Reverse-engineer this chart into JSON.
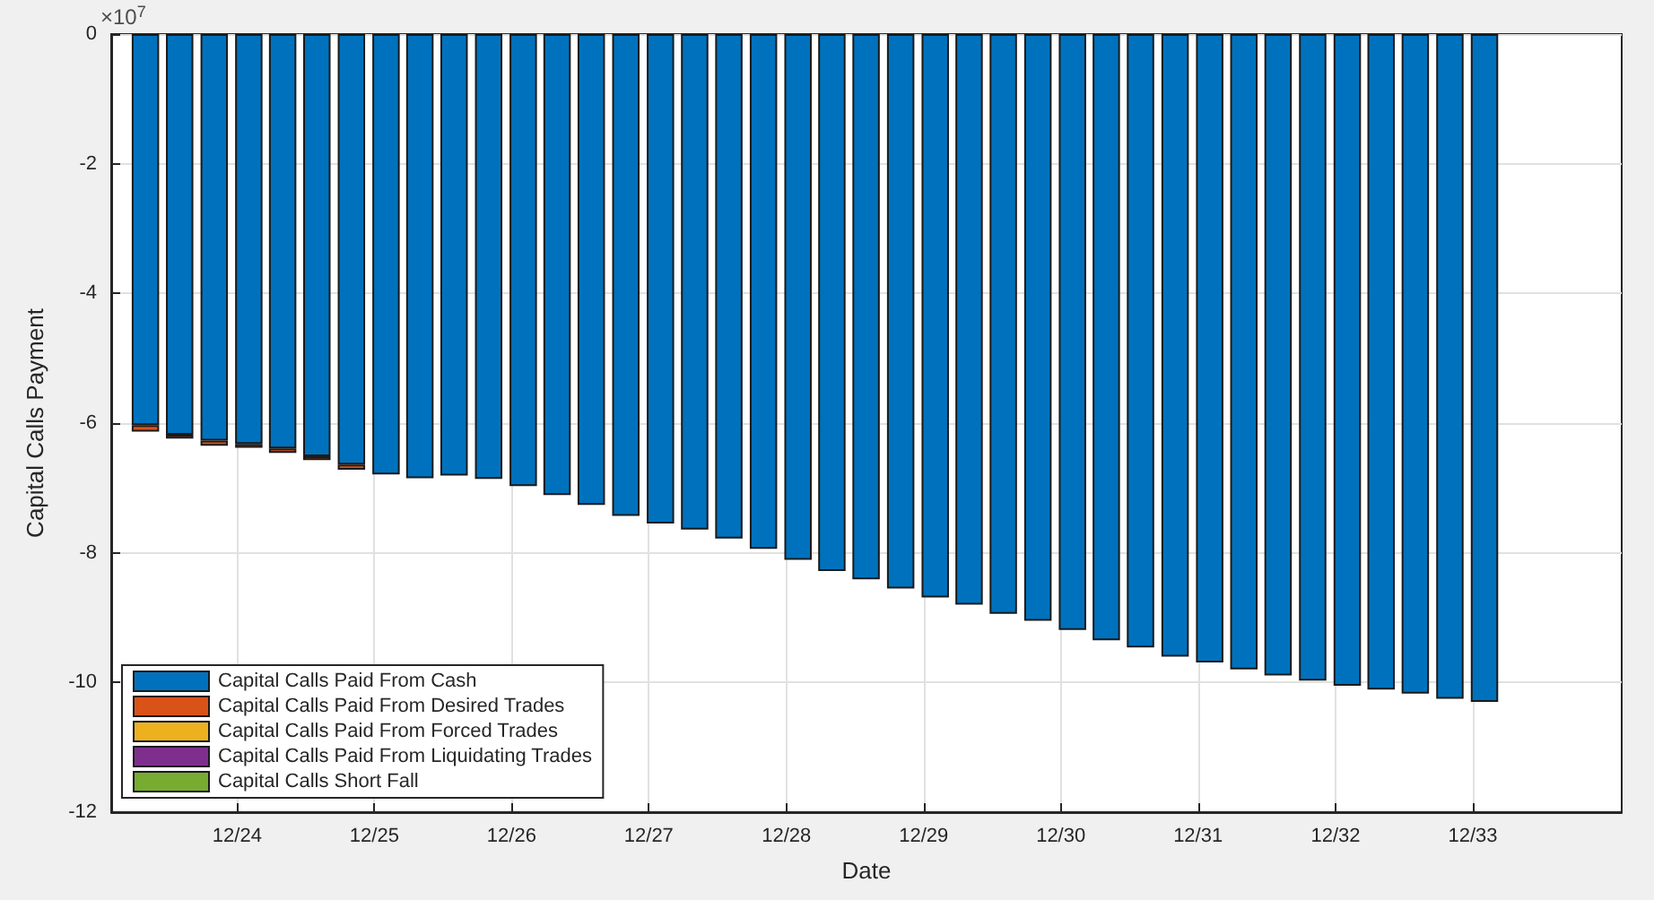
{
  "chart_data": {
    "type": "bar",
    "stacked": true,
    "xlabel": "Date",
    "ylabel": "Capital Calls Payment",
    "annotations": [
      "×10$^{7}$"
    ],
    "x": [
      "2024-04-01",
      "2024-07-01",
      "2024-10-01",
      "2025-01-01",
      "2025-04-01",
      "2025-07-01",
      "2025-10-01",
      "2026-01-01",
      "2026-04-01",
      "2026-07-01",
      "2026-10-01",
      "2027-01-01",
      "2027-04-01",
      "2027-07-01",
      "2027-10-01",
      "2028-01-01",
      "2028-04-01",
      "2028-07-01",
      "2028-10-01",
      "2029-01-01",
      "2029-04-01",
      "2029-07-01",
      "2029-10-01",
      "2030-01-01",
      "2030-04-01",
      "2030-07-01",
      "2030-10-01",
      "2031-01-01",
      "2031-04-01",
      "2031-07-01",
      "2031-10-01",
      "2032-01-01",
      "2032-04-01",
      "2032-07-01",
      "2032-10-01",
      "2033-01-01",
      "2033-04-01",
      "2033-07-01",
      "2033-10-01",
      "2034-01-01"
    ],
    "series": [
      {
        "name": "Capital Calls Paid From Cash",
        "color": "#0072bd",
        "values": [
          -6.03,
          -6.18,
          -6.27,
          -6.32,
          -6.39,
          -6.51,
          -6.64,
          -6.79,
          -6.85,
          -6.81,
          -6.86,
          -6.97,
          -7.11,
          -7.26,
          -7.43,
          -7.55,
          -7.64,
          -7.78,
          -7.94,
          -8.11,
          -8.28,
          -8.41,
          -8.55,
          -8.69,
          -8.8,
          -8.94,
          -9.05,
          -9.19,
          -9.35,
          -9.46,
          -9.6,
          -9.69,
          -9.8,
          -9.89,
          -9.97,
          -10.05,
          -10.11,
          -10.17,
          -10.25,
          -10.3
        ]
      },
      {
        "name": "Capital Calls Paid From Desired Trades",
        "color": "#d95319",
        "values": [
          -0.1,
          -0.06,
          -0.08,
          -0.06,
          -0.07,
          -0.06,
          -0.08,
          null,
          null,
          null,
          null,
          null,
          null,
          null,
          null,
          null,
          null,
          null,
          null,
          null,
          null,
          null,
          null,
          null,
          null,
          null,
          null,
          null,
          null,
          null,
          null,
          null,
          null,
          null,
          null,
          null,
          null,
          null,
          null,
          null
        ]
      },
      {
        "name": "Capital Calls Paid From Forced Trades",
        "color": "#edb120",
        "values": [
          null,
          null,
          null,
          null,
          null,
          null,
          null,
          null,
          null,
          null,
          null,
          null,
          null,
          null,
          null,
          null,
          null,
          null,
          null,
          null,
          null,
          null,
          null,
          null,
          null,
          null,
          null,
          null,
          null,
          null,
          null,
          null,
          null,
          null,
          null,
          null,
          null,
          null,
          null,
          null
        ]
      },
      {
        "name": "Capital Calls Paid From Liquidating Trades",
        "color": "#7e2f8e",
        "values": [
          null,
          null,
          null,
          null,
          null,
          null,
          null,
          null,
          null,
          null,
          null,
          null,
          null,
          null,
          null,
          null,
          null,
          null,
          null,
          null,
          null,
          null,
          null,
          null,
          null,
          null,
          null,
          null,
          null,
          null,
          null,
          null,
          null,
          null,
          null,
          null,
          null,
          null,
          null,
          null
        ]
      },
      {
        "name": "Capital Calls Short Fall",
        "color": "#77ac30",
        "values": [
          null,
          null,
          null,
          null,
          null,
          null,
          null,
          null,
          null,
          null,
          null,
          null,
          null,
          null,
          null,
          null,
          null,
          null,
          null,
          null,
          null,
          null,
          null,
          null,
          null,
          null,
          null,
          null,
          null,
          null,
          null,
          null,
          null,
          null,
          null,
          null,
          null,
          null,
          null,
          null
        ]
      }
    ],
    "xlim": [
      "2024-01-01",
      "2035-01-01"
    ],
    "xticks": [
      {
        "value": "2024-12-01",
        "label": "12/24"
      },
      {
        "value": "2025-12-01",
        "label": "12/25"
      },
      {
        "value": "2026-12-01",
        "label": "12/26"
      },
      {
        "value": "2027-12-01",
        "label": "12/27"
      },
      {
        "value": "2028-12-01",
        "label": "12/28"
      },
      {
        "value": "2029-12-01",
        "label": "12/29"
      },
      {
        "value": "2030-12-01",
        "label": "12/30"
      },
      {
        "value": "2031-12-01",
        "label": "12/31"
      },
      {
        "value": "2032-12-01",
        "label": "12/32"
      },
      {
        "value": "2033-12-01",
        "label": "12/33"
      }
    ],
    "ylim": [
      -12,
      0
    ],
    "yticks": [
      -12,
      -10,
      -8,
      -6,
      -4,
      -2,
      0
    ],
    "grid": true,
    "legend": "bottom left"
  }
}
